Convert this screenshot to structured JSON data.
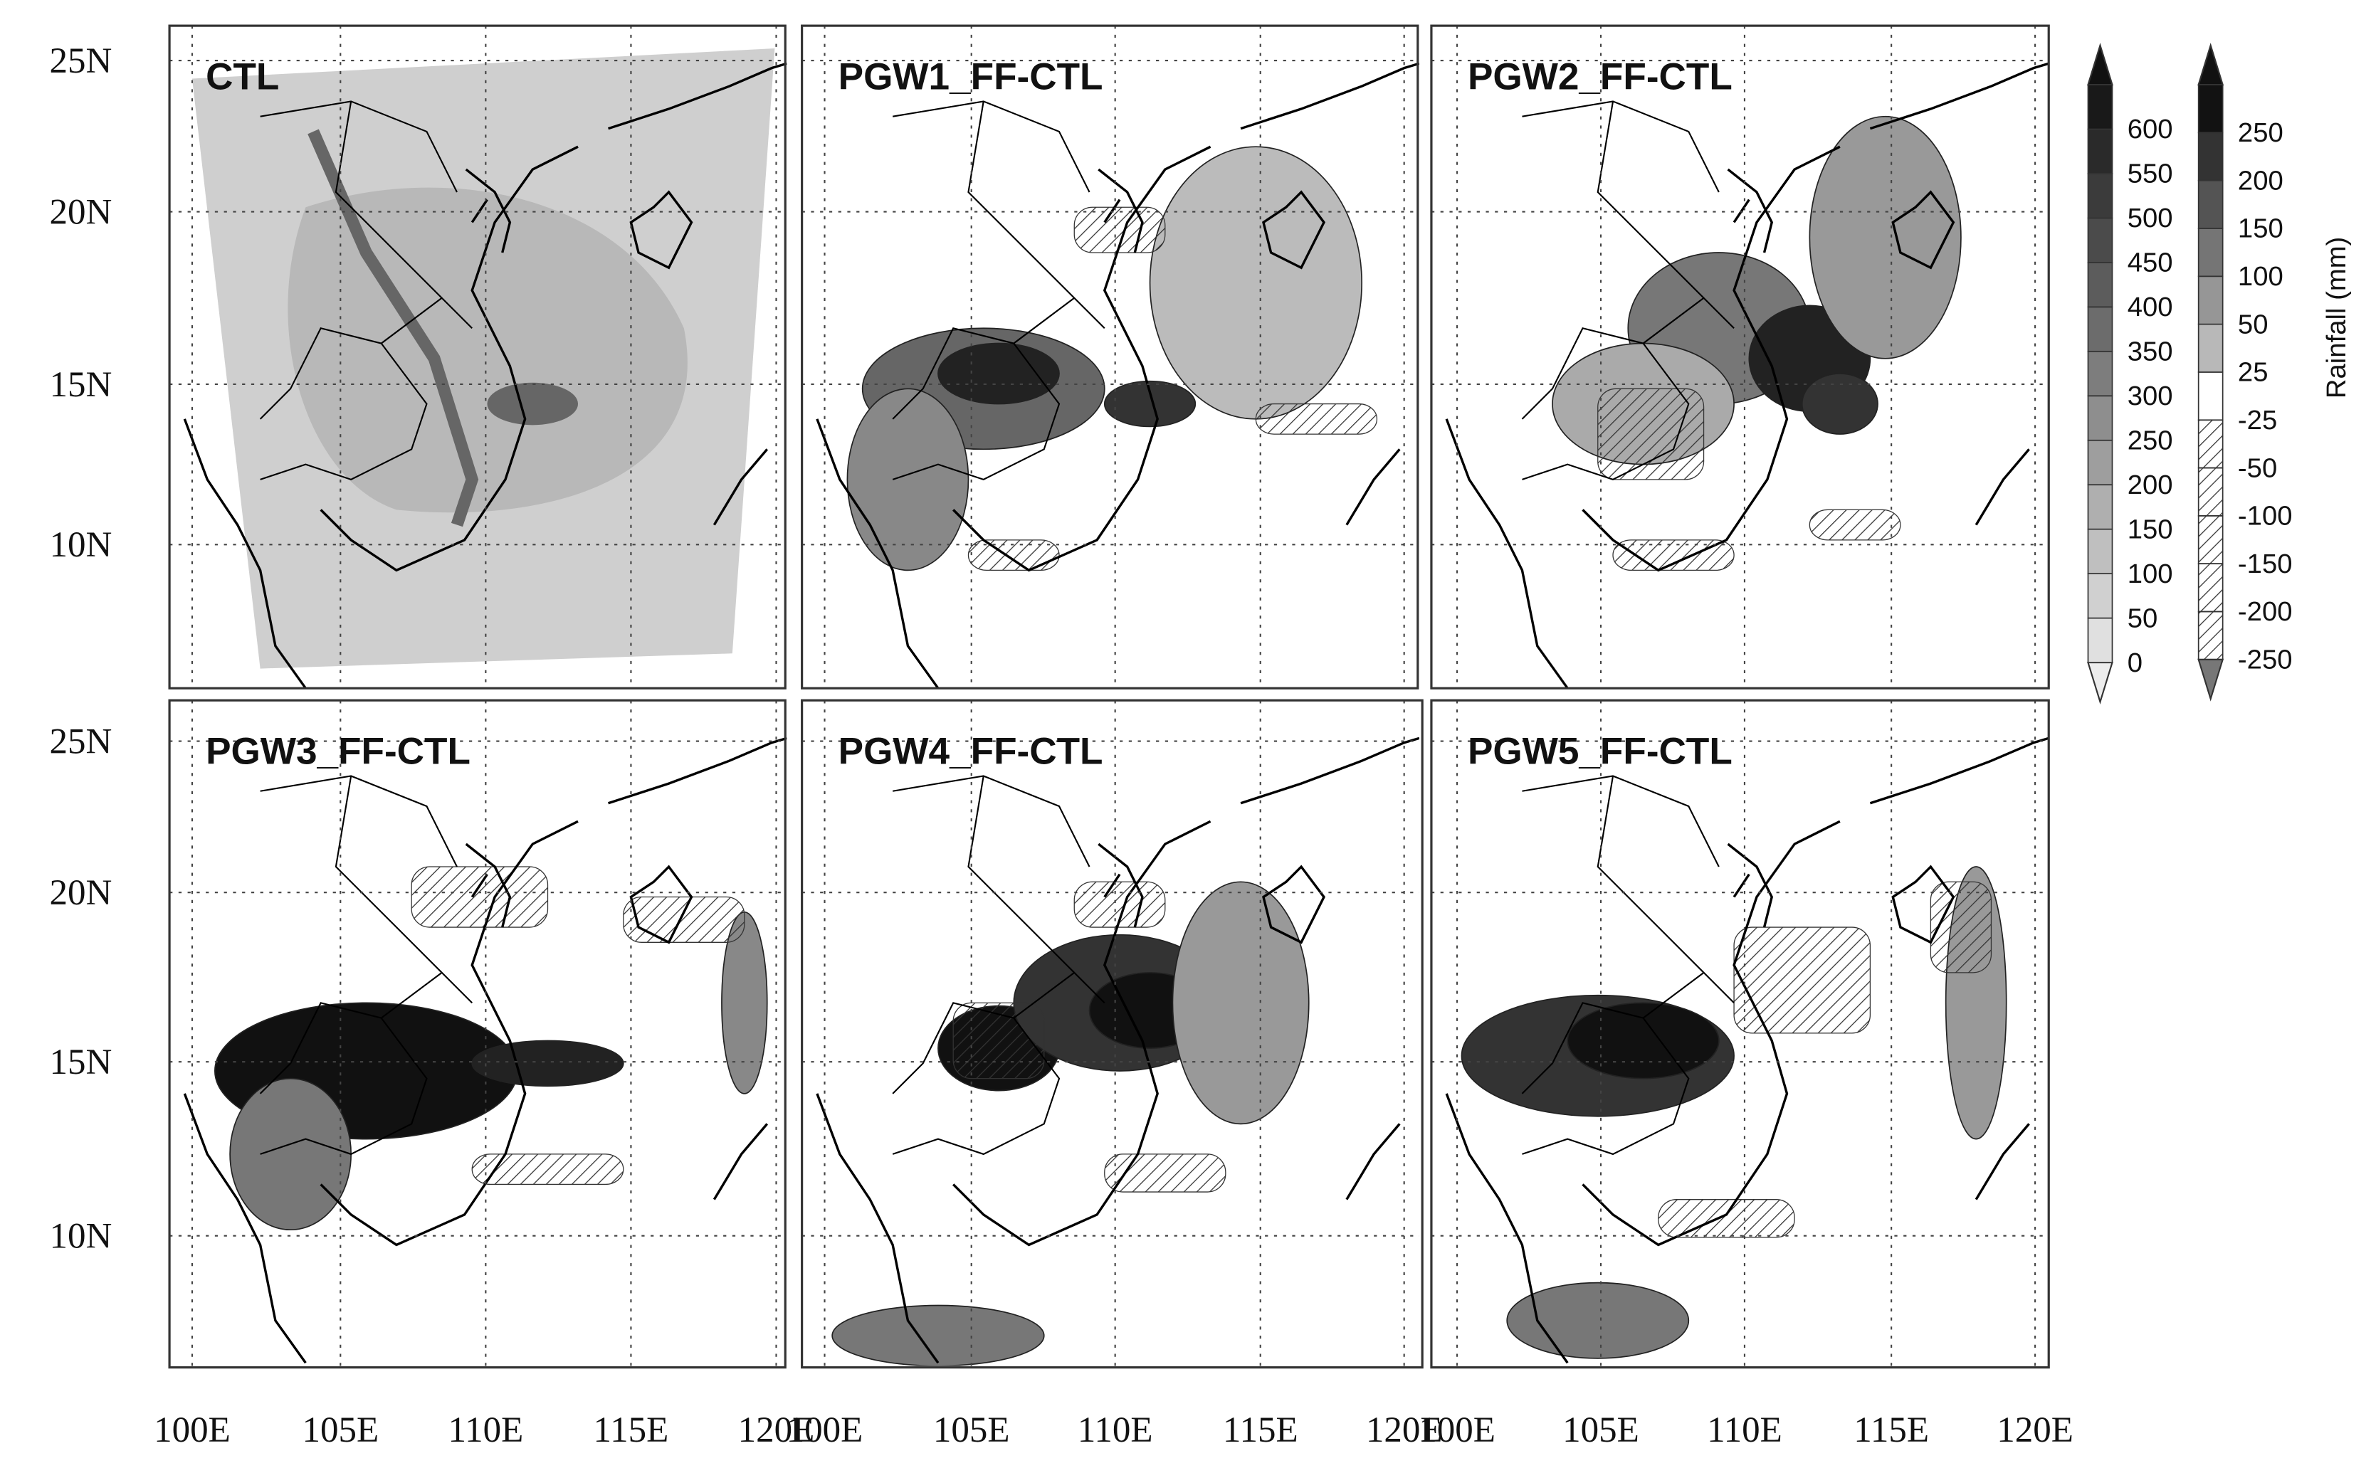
{
  "panels": [
    {
      "title": "CTL"
    },
    {
      "title": "PGW1_FF-CTL"
    },
    {
      "title": "PGW2_FF-CTL"
    },
    {
      "title": "PGW3_FF-CTL"
    },
    {
      "title": "PGW4_FF-CTL"
    },
    {
      "title": "PGW5_FF-CTL"
    }
  ],
  "latitude_labels": [
    "25N",
    "20N",
    "15N",
    "10N"
  ],
  "longitude_labels": [
    "100E",
    "105E",
    "110E",
    "115E",
    "120E"
  ],
  "rainfall_levels": [
    0,
    50,
    100,
    150,
    200,
    250,
    300,
    350,
    400,
    450,
    500,
    550,
    600
  ],
  "difference_levels": [
    -250,
    -200,
    -150,
    -100,
    -50,
    -25,
    25,
    50,
    100,
    150,
    200,
    250
  ],
  "colorbar_label": "Rainfall (mm)"
}
